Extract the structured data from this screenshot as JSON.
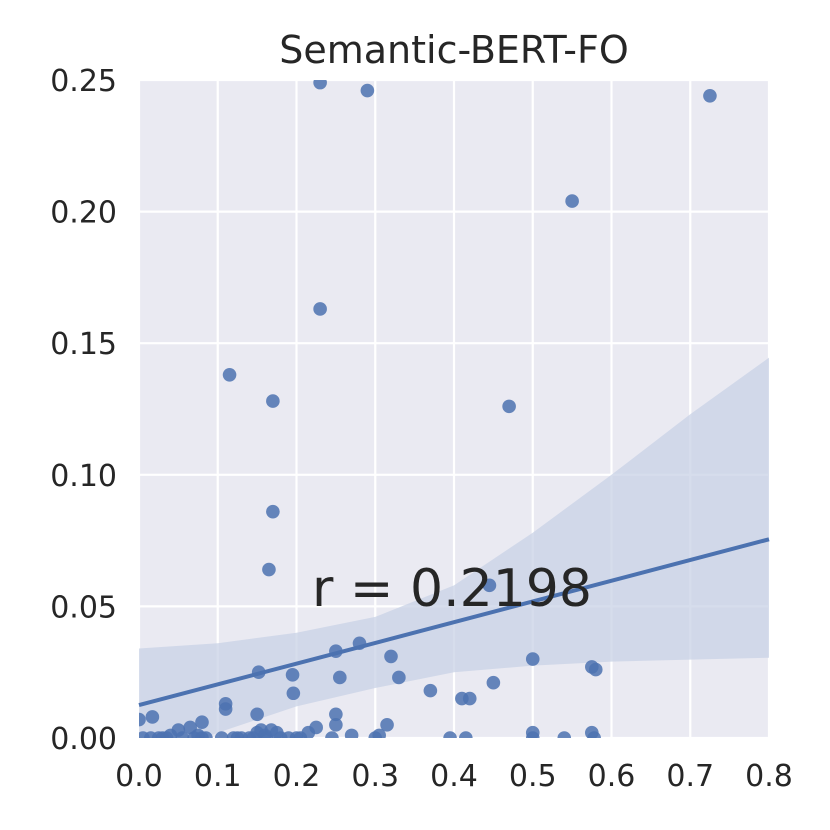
{
  "chart_data": {
    "type": "scatter",
    "title": "Semantic-BERT-FO",
    "xlabel": "",
    "ylabel": "",
    "xlim": [
      0.0,
      0.8
    ],
    "ylim": [
      0.0,
      0.25
    ],
    "x_ticks": [
      "0.0",
      "0.1",
      "0.2",
      "0.3",
      "0.4",
      "0.5",
      "0.6",
      "0.7",
      "0.8"
    ],
    "y_ticks": [
      "0.00",
      "0.05",
      "0.10",
      "0.15",
      "0.20",
      "0.25"
    ],
    "grid": true,
    "annotation": "r = 0.2198",
    "colors": {
      "background": "#eaeaf2",
      "points": "#4c72b0",
      "line": "#4c72b0",
      "band": "#c8d1e6"
    },
    "regression": {
      "line": [
        [
          0.0,
          0.0125
        ],
        [
          0.8,
          0.0755
        ]
      ],
      "ci_upper": [
        [
          0.0,
          0.034
        ],
        [
          0.1,
          0.036
        ],
        [
          0.2,
          0.04
        ],
        [
          0.3,
          0.046
        ],
        [
          0.4,
          0.058
        ],
        [
          0.5,
          0.078
        ],
        [
          0.6,
          0.1
        ],
        [
          0.7,
          0.123
        ],
        [
          0.8,
          0.1445
        ]
      ],
      "ci_lower": [
        [
          0.0,
          -0.01
        ],
        [
          0.1,
          0.002
        ],
        [
          0.2,
          0.012
        ],
        [
          0.3,
          0.019
        ],
        [
          0.4,
          0.025
        ],
        [
          0.5,
          0.0275
        ],
        [
          0.6,
          0.029
        ],
        [
          0.7,
          0.0298
        ],
        [
          0.8,
          0.0305
        ]
      ]
    },
    "points": [
      [
        0.0,
        0.007
      ],
      [
        0.005,
        0.0
      ],
      [
        0.015,
        0.0
      ],
      [
        0.017,
        0.008
      ],
      [
        0.025,
        0.0
      ],
      [
        0.03,
        0.0
      ],
      [
        0.035,
        0.0
      ],
      [
        0.04,
        0.001
      ],
      [
        0.05,
        0.003
      ],
      [
        0.055,
        0.0
      ],
      [
        0.065,
        0.004
      ],
      [
        0.07,
        0.0
      ],
      [
        0.075,
        0.001
      ],
      [
        0.08,
        0.006
      ],
      [
        0.08,
        0.0
      ],
      [
        0.085,
        0.0
      ],
      [
        0.105,
        0.0
      ],
      [
        0.11,
        0.013
      ],
      [
        0.11,
        0.011
      ],
      [
        0.115,
        0.138
      ],
      [
        0.12,
        0.0
      ],
      [
        0.125,
        0.0
      ],
      [
        0.13,
        0.0
      ],
      [
        0.14,
        0.0
      ],
      [
        0.145,
        0.0
      ],
      [
        0.15,
        0.002
      ],
      [
        0.15,
        0.009
      ],
      [
        0.152,
        0.025
      ],
      [
        0.155,
        0.003
      ],
      [
        0.16,
        0.001
      ],
      [
        0.162,
        0.0
      ],
      [
        0.165,
        0.064
      ],
      [
        0.168,
        0.003
      ],
      [
        0.17,
        0.128
      ],
      [
        0.17,
        0.086
      ],
      [
        0.175,
        0.002
      ],
      [
        0.18,
        0.0
      ],
      [
        0.19,
        0.0
      ],
      [
        0.195,
        0.024
      ],
      [
        0.196,
        0.017
      ],
      [
        0.2,
        0.0
      ],
      [
        0.205,
        0.0
      ],
      [
        0.215,
        0.002
      ],
      [
        0.225,
        0.004
      ],
      [
        0.23,
        0.163
      ],
      [
        0.23,
        0.249
      ],
      [
        0.245,
        0.0
      ],
      [
        0.25,
        0.009
      ],
      [
        0.25,
        0.005
      ],
      [
        0.25,
        0.033
      ],
      [
        0.255,
        0.023
      ],
      [
        0.27,
        0.001
      ],
      [
        0.28,
        0.036
      ],
      [
        0.29,
        0.246
      ],
      [
        0.3,
        0.0
      ],
      [
        0.305,
        0.001
      ],
      [
        0.315,
        0.005
      ],
      [
        0.32,
        0.031
      ],
      [
        0.33,
        0.023
      ],
      [
        0.37,
        0.018
      ],
      [
        0.395,
        0.0
      ],
      [
        0.41,
        0.015
      ],
      [
        0.415,
        0.0
      ],
      [
        0.42,
        0.015
      ],
      [
        0.445,
        0.058
      ],
      [
        0.45,
        0.021
      ],
      [
        0.47,
        0.126
      ],
      [
        0.5,
        0.0
      ],
      [
        0.5,
        0.002
      ],
      [
        0.5,
        0.03
      ],
      [
        0.54,
        0.0
      ],
      [
        0.55,
        0.204
      ],
      [
        0.575,
        0.027
      ],
      [
        0.575,
        0.002
      ],
      [
        0.578,
        0.0
      ],
      [
        0.58,
        0.026
      ],
      [
        0.725,
        0.244
      ]
    ]
  }
}
